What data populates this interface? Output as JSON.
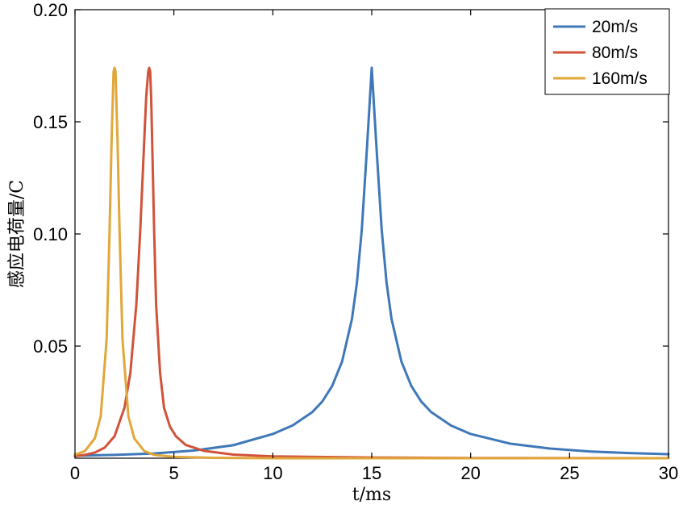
{
  "chart_data": {
    "type": "line",
    "xlabel": "t/ms",
    "ylabel": "感应电荷量/C",
    "xlim": [
      0,
      30
    ],
    "ylim": [
      0,
      0.2
    ],
    "x_ticks": [
      0,
      5,
      10,
      15,
      20,
      25,
      30
    ],
    "x_tick_labels": [
      "0",
      "5",
      "10",
      "15",
      "20",
      "25",
      "30"
    ],
    "y_ticks": [
      0.05,
      0.1,
      0.15,
      0.2
    ],
    "y_tick_labels": [
      "0.05",
      "0.10",
      "0.15",
      "0.20"
    ],
    "grid": false,
    "legend_position": "top-right",
    "series": [
      {
        "name": "20m/s",
        "color": "#3f78b8",
        "x": [
          0,
          2,
          4,
          6,
          8,
          10,
          11,
          12,
          12.5,
          13,
          13.5,
          14,
          14.25,
          14.5,
          14.75,
          15,
          15.25,
          15.5,
          15.75,
          16,
          16.5,
          17,
          17.5,
          18,
          19,
          20,
          22,
          24,
          26,
          28,
          30
        ],
        "values": [
          0.0011,
          0.0015,
          0.0021,
          0.0034,
          0.0058,
          0.0108,
          0.0146,
          0.0206,
          0.0253,
          0.0322,
          0.0431,
          0.0621,
          0.0782,
          0.1022,
          0.1371,
          0.1741,
          0.1371,
          0.1022,
          0.0782,
          0.0621,
          0.0431,
          0.0322,
          0.0253,
          0.0206,
          0.0146,
          0.0108,
          0.0065,
          0.0043,
          0.003,
          0.0023,
          0.0018
        ]
      },
      {
        "name": "80m/s",
        "color": "#d0533a",
        "x": [
          0,
          0.5,
          1,
          1.5,
          2,
          2.5,
          2.8,
          3.1,
          3.3,
          3.5,
          3.6,
          3.7,
          3.75,
          3.8,
          3.85,
          3.9,
          4,
          4.1,
          4.3,
          4.5,
          4.8,
          5.1,
          5.6,
          6.5,
          8,
          10,
          15,
          20,
          30
        ],
        "values": [
          0.0009,
          0.0015,
          0.0025,
          0.0047,
          0.0098,
          0.0225,
          0.0382,
          0.0685,
          0.1018,
          0.1417,
          0.1611,
          0.1723,
          0.1741,
          0.1723,
          0.1611,
          0.1417,
          0.1018,
          0.0685,
          0.0382,
          0.0225,
          0.0141,
          0.0098,
          0.0059,
          0.0033,
          0.0016,
          0.0008,
          0.0003,
          0.0001,
          0
        ]
      },
      {
        "name": "160m/s",
        "color": "#e1a73a",
        "x": [
          0,
          0.5,
          1,
          1.3,
          1.6,
          1.75,
          1.85,
          1.95,
          2,
          2.05,
          2.15,
          2.25,
          2.4,
          2.7,
          3,
          3.5,
          4,
          5,
          7,
          10,
          30
        ],
        "values": [
          0.0015,
          0.0032,
          0.0088,
          0.0186,
          0.0531,
          0.1022,
          0.1417,
          0.1723,
          0.1741,
          0.1723,
          0.1417,
          0.1022,
          0.0531,
          0.0186,
          0.0088,
          0.0032,
          0.0015,
          0.0006,
          0.0002,
          0,
          0
        ]
      }
    ]
  }
}
